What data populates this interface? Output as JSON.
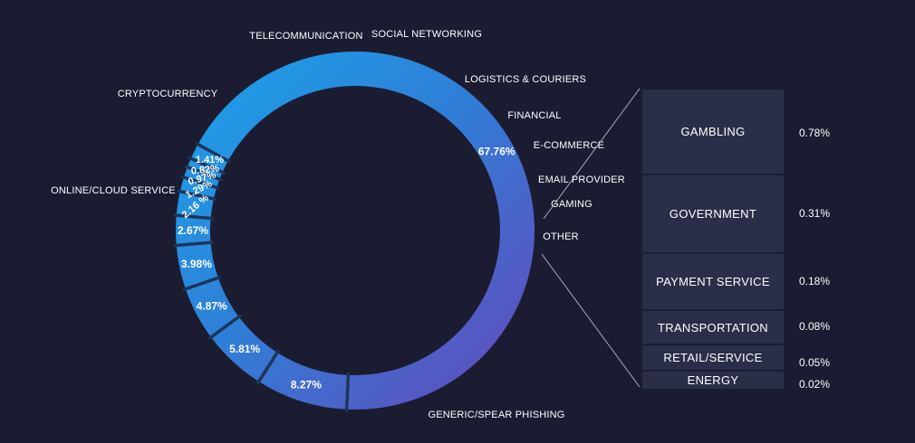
{
  "chart_data": {
    "type": "pie",
    "variant": "donut",
    "categories": [
      "TELECOMMUNICATION",
      "SOCIAL NETWORKING",
      "LOGISTICS & COURIERS",
      "FINANCIAL",
      "E-COMMERCE",
      "EMAIL PROVIDER",
      "GAMING",
      "OTHER",
      "GENERIC/SPEAR PHISHING",
      "ONLINE/CLOUD SERVICE",
      "CRYPTOCURRENCY"
    ],
    "values": [
      4.87,
      3.98,
      2.67,
      2.16,
      1.29,
      0.97,
      0.82,
      1.41,
      67.76,
      8.27,
      5.81
    ],
    "value_labels": [
      "4.87%",
      "3.98%",
      "2.67%",
      "2.16 %",
      "1.29%",
      "0.97%",
      "0.82%",
      "1.41%",
      "67.76%",
      "8.27%",
      "5.81%"
    ],
    "colors": {
      "start": "#1ba3ea",
      "end": "#6845b8",
      "background": "#1b1c32",
      "separator": "#1d3558"
    },
    "breakdown": {
      "parent": "OTHER",
      "categories": [
        "GAMBLING",
        "GOVERNMENT",
        "PAYMENT SERVICE",
        "TRANSPORTATION",
        "RETAIL/SERVICE",
        "ENERGY"
      ],
      "values": [
        0.78,
        0.31,
        0.18,
        0.08,
        0.05,
        0.02
      ],
      "value_labels": [
        "0.78%",
        "0.31%",
        "0.18%",
        "0.08%",
        "0.05%",
        "0.02%"
      ]
    }
  }
}
